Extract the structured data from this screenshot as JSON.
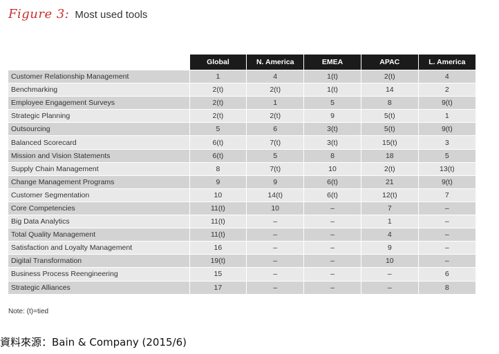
{
  "figure": {
    "label": "Figure 3:",
    "title": "Most used tools"
  },
  "table": {
    "columns": [
      "Global",
      "N. America",
      "EMEA",
      "APAC",
      "L. America"
    ],
    "rows": [
      {
        "tool": "Customer Relationship Management",
        "values": [
          "1",
          "4",
          "1(t)",
          "2(t)",
          "4"
        ]
      },
      {
        "tool": "Benchmarking",
        "values": [
          "2(t)",
          "2(t)",
          "1(t)",
          "14",
          "2"
        ]
      },
      {
        "tool": "Employee Engagement Surveys",
        "values": [
          "2(t)",
          "1",
          "5",
          "8",
          "9(t)"
        ]
      },
      {
        "tool": "Strategic Planning",
        "values": [
          "2(t)",
          "2(t)",
          "9",
          "5(t)",
          "1"
        ]
      },
      {
        "tool": "Outsourcing",
        "values": [
          "5",
          "6",
          "3(t)",
          "5(t)",
          "9(t)"
        ]
      },
      {
        "tool": "Balanced Scorecard",
        "values": [
          "6(t)",
          "7(t)",
          "3(t)",
          "15(t)",
          "3"
        ]
      },
      {
        "tool": "Mission and Vision Statements",
        "values": [
          "6(t)",
          "5",
          "8",
          "18",
          "5"
        ]
      },
      {
        "tool": "Supply Chain Management",
        "values": [
          "8",
          "7(t)",
          "10",
          "2(t)",
          "13(t)"
        ]
      },
      {
        "tool": "Change Management Programs",
        "values": [
          "9",
          "9",
          "6(t)",
          "21",
          "9(t)"
        ]
      },
      {
        "tool": "Customer Segmentation",
        "values": [
          "10",
          "14(t)",
          "6(t)",
          "12(t)",
          "7"
        ]
      },
      {
        "tool": "Core Competencies",
        "values": [
          "11(t)",
          "10",
          "–",
          "7",
          "–"
        ]
      },
      {
        "tool": "Big Data Analytics",
        "values": [
          "11(t)",
          "–",
          "–",
          "1",
          "–"
        ]
      },
      {
        "tool": "Total Quality Management",
        "values": [
          "11(t)",
          "–",
          "–",
          "4",
          "–"
        ]
      },
      {
        "tool": "Satisfaction and Loyalty Management",
        "values": [
          "16",
          "–",
          "–",
          "9",
          "–"
        ]
      },
      {
        "tool": "Digital Transformation",
        "values": [
          "19(t)",
          "–",
          "–",
          "10",
          "–"
        ]
      },
      {
        "tool": "Business Process Reengineering",
        "values": [
          "15",
          "–",
          "–",
          "–",
          "6"
        ]
      },
      {
        "tool": "Strategic Alliances",
        "values": [
          "17",
          "–",
          "–",
          "–",
          "8"
        ]
      }
    ]
  },
  "note": "Note: (t)=tied",
  "source": "資料來源：Bain & Company (2015/6)",
  "colors": {
    "accent": "#c8302f",
    "header_bg": "#1b1b1b",
    "row_dark": "#d3d3d3",
    "row_light": "#e9e9e9"
  }
}
